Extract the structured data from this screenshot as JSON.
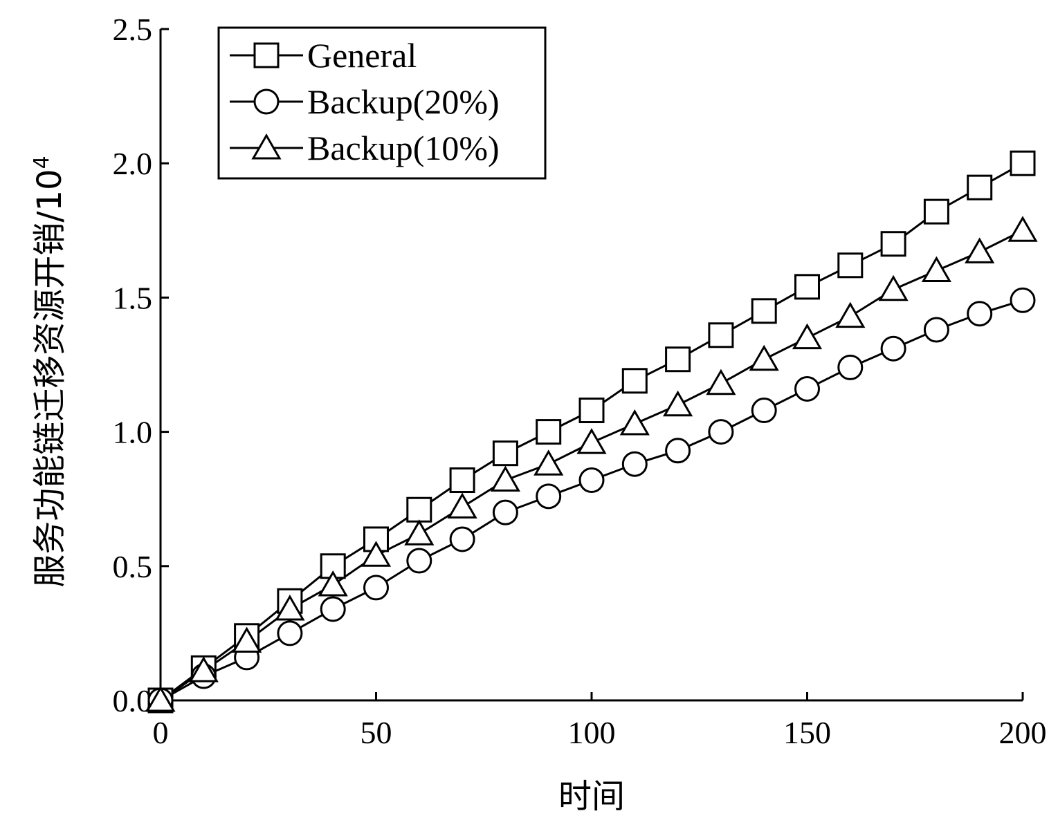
{
  "chart_data": {
    "type": "line",
    "title": "",
    "xlabel": "时间",
    "ylabel": "服务功能链迁移资源开销/10",
    "ylabel_exponent": "4",
    "xlim": [
      0,
      200
    ],
    "ylim": [
      0,
      2.5
    ],
    "xticks": [
      0,
      50,
      100,
      150,
      200
    ],
    "xtick_labels": [
      "0",
      "50",
      "100",
      "150",
      "200"
    ],
    "yticks": [
      0,
      0.5,
      1.0,
      1.5,
      2.0,
      2.5
    ],
    "ytick_labels": [
      "0.0",
      "0.5",
      "1.0",
      "1.5",
      "2.0",
      "2.5"
    ],
    "grid": false,
    "legend_position": "top-left",
    "x": [
      0,
      10,
      20,
      30,
      40,
      50,
      60,
      70,
      80,
      90,
      100,
      110,
      120,
      130,
      140,
      150,
      160,
      170,
      180,
      190,
      200
    ],
    "series": [
      {
        "name": "General",
        "marker": "square",
        "values": [
          0,
          0.12,
          0.24,
          0.37,
          0.5,
          0.6,
          0.71,
          0.82,
          0.92,
          1.0,
          1.08,
          1.19,
          1.27,
          1.36,
          1.45,
          1.54,
          1.62,
          1.7,
          1.82,
          1.91,
          2.0
        ]
      },
      {
        "name": "Backup(20%)",
        "marker": "circle",
        "values": [
          0,
          0.09,
          0.16,
          0.25,
          0.34,
          0.42,
          0.52,
          0.6,
          0.7,
          0.76,
          0.82,
          0.88,
          0.93,
          1.0,
          1.08,
          1.16,
          1.24,
          1.31,
          1.38,
          1.44,
          1.49
        ]
      },
      {
        "name": "Backup(10%)",
        "marker": "triangle",
        "values": [
          0,
          0.11,
          0.22,
          0.34,
          0.43,
          0.54,
          0.62,
          0.72,
          0.82,
          0.88,
          0.96,
          1.03,
          1.1,
          1.18,
          1.27,
          1.35,
          1.43,
          1.53,
          1.6,
          1.67,
          1.75
        ]
      }
    ]
  }
}
